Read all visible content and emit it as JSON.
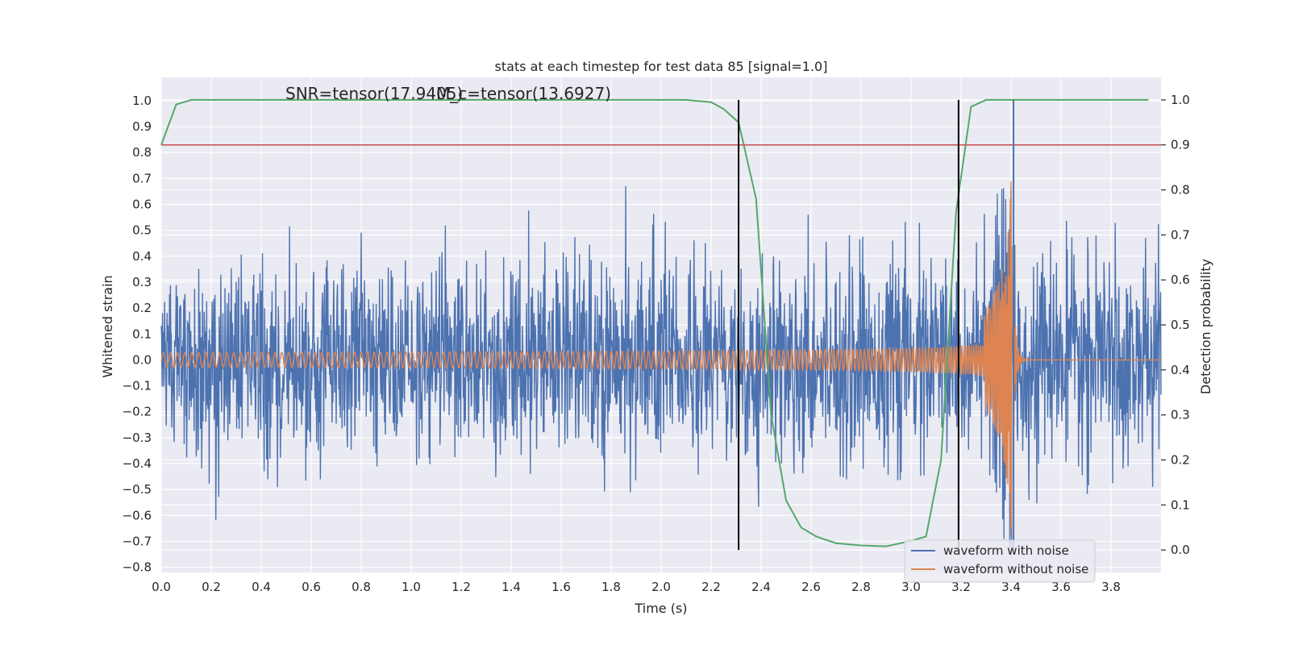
{
  "chart_data": {
    "type": "line",
    "title": "stats at each timestep for test data 85 [signal=1.0]",
    "xlabel": "Time (s)",
    "ylabel": "Whitened strain",
    "y2label": "Detection probability",
    "xlim": [
      0.0,
      4.0
    ],
    "ylim": [
      -0.82,
      1.09
    ],
    "y2lim": [
      -0.05,
      1.05
    ],
    "xticks": [
      0.0,
      0.2,
      0.4,
      0.6,
      0.8,
      1.0,
      1.2,
      1.4,
      1.6,
      1.8,
      2.0,
      2.2,
      2.4,
      2.6,
      2.8,
      3.0,
      3.2,
      3.4,
      3.6,
      3.8
    ],
    "xtick_labels": [
      "0.0",
      "0.2",
      "0.4",
      "0.6",
      "0.8",
      "1.0",
      "1.2",
      "1.4",
      "1.6",
      "1.8",
      "2.0",
      "2.2",
      "2.4",
      "2.6",
      "2.8",
      "3.0",
      "3.2",
      "3.4",
      "3.6",
      "3.8"
    ],
    "yticks": [
      1.0,
      0.9,
      0.8,
      0.7,
      0.6,
      0.5,
      0.4,
      0.3,
      0.2,
      0.1,
      0.0,
      -0.1,
      -0.2,
      -0.3,
      -0.4,
      -0.5,
      -0.6,
      -0.7,
      -0.8
    ],
    "ytick_labels": [
      "1.0",
      "0.9",
      "0.8",
      "0.7",
      "0.6",
      "0.5",
      "0.4",
      "0.3",
      "0.2",
      "0.1",
      "0.0",
      "−0.1",
      "−0.2",
      "−0.3",
      "−0.4",
      "−0.5",
      "−0.6",
      "−0.7",
      "−0.8"
    ],
    "y2ticks": [
      1.0,
      0.9,
      0.8,
      0.7,
      0.6,
      0.5,
      0.4,
      0.3,
      0.2,
      0.1,
      0.0
    ],
    "y2tick_labels": [
      "1.0",
      "0.9",
      "0.8",
      "0.7",
      "0.6",
      "0.5",
      "0.4",
      "0.3",
      "0.2",
      "0.1",
      "0.0"
    ],
    "grid": true,
    "annotations": [
      "SNR=tensor(17.9405)",
      "M_c=tensor(13.6927)"
    ],
    "legend": {
      "placement": "lower right",
      "entries": [
        "waveform with noise",
        "waveform without noise"
      ]
    },
    "series": [
      {
        "name": "waveform with noise",
        "color": "#4c72b0",
        "description": "noisy whitened strain, amplitude roughly between -0.78 and 0.67, spike to 1.0 near t=3.41"
      },
      {
        "name": "waveform without noise",
        "color": "#dd8452",
        "description": "chirp signal, amplitude ~0.03 at t=0 growing to peak ~0.7 at t=3.41, then ringdown to 0",
        "peak_time": 3.41,
        "peak_value": 0.7
      },
      {
        "name": "",
        "axis": "right",
        "color": "#55a868",
        "x": [
          0.0,
          0.06,
          0.12,
          0.2,
          0.5,
          1.0,
          1.5,
          2.0,
          2.1,
          2.2,
          2.25,
          2.31,
          2.38,
          2.44,
          2.5,
          2.56,
          2.62,
          2.7,
          2.8,
          2.9,
          3.0,
          3.06,
          3.12,
          3.18,
          3.24,
          3.3,
          3.36,
          3.95
        ],
        "values": [
          0.9,
          0.99,
          1.0,
          1.0,
          1.0,
          1.0,
          1.0,
          1.0,
          1.0,
          0.995,
          0.98,
          0.95,
          0.78,
          0.3,
          0.11,
          0.05,
          0.03,
          0.015,
          0.01,
          0.008,
          0.02,
          0.03,
          0.2,
          0.75,
          0.985,
          1.0,
          1.0,
          1.0
        ]
      }
    ],
    "hlines": [
      {
        "y2": 0.9,
        "color": "#c44e52"
      }
    ],
    "vlines": [
      {
        "x": 2.31,
        "color": "#000000"
      },
      {
        "x": 3.19,
        "color": "#000000"
      },
      {
        "x": 3.41,
        "color": "#4c72b0"
      }
    ]
  }
}
